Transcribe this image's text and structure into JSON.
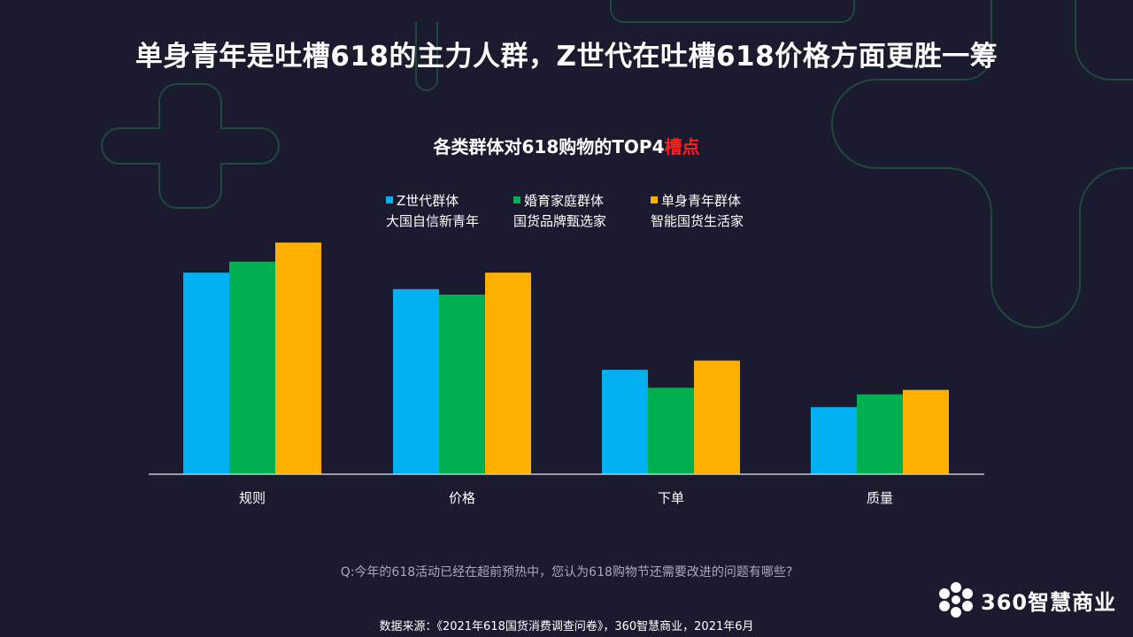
{
  "headline": "单身青年是吐槽618的主力人群，Z世代在吐槽618价格方面更胜一筹",
  "chart_title": {
    "main": "各类群体对618购物的TOP4",
    "accent": "槽点"
  },
  "legend": [
    {
      "line1": "Z世代群体",
      "line2": "大国自信新青年",
      "color": "#00b0f0"
    },
    {
      "line1": "婚育家庭群体",
      "line2": "国货品牌甄选家",
      "color": "#00b050"
    },
    {
      "line1": "单身青年群体",
      "line2": "智能国货生活家",
      "color": "#ffb000"
    }
  ],
  "chart_data": {
    "type": "bar",
    "title": "各类群体对618购物的TOP4槽点",
    "categories": [
      "规则",
      "价格",
      "下单",
      "质量"
    ],
    "series": [
      {
        "name": "Z世代群体",
        "values": [
          55,
          50.5,
          28.5,
          18.3
        ]
      },
      {
        "name": "婚育家庭群体",
        "values": [
          58,
          49,
          23.6,
          21.8
        ]
      },
      {
        "name": "单身青年群体",
        "values": [
          63.2,
          55,
          31,
          23
        ]
      }
    ],
    "ylim": [
      0,
      70
    ],
    "grid": false,
    "legend_position": "top"
  },
  "question": "Q:今年的618活动已经在超前预热中，您认为618购物节还需要改进的问题有哪些?",
  "source": "数据来源：《2021年618国货消费调查问卷》，360智慧商业，2021年6月",
  "logo_text": "360智慧商业",
  "colors": {
    "background": "#1b1b30",
    "deco": "#1f4a3a",
    "axis": "#c8c8d4"
  }
}
